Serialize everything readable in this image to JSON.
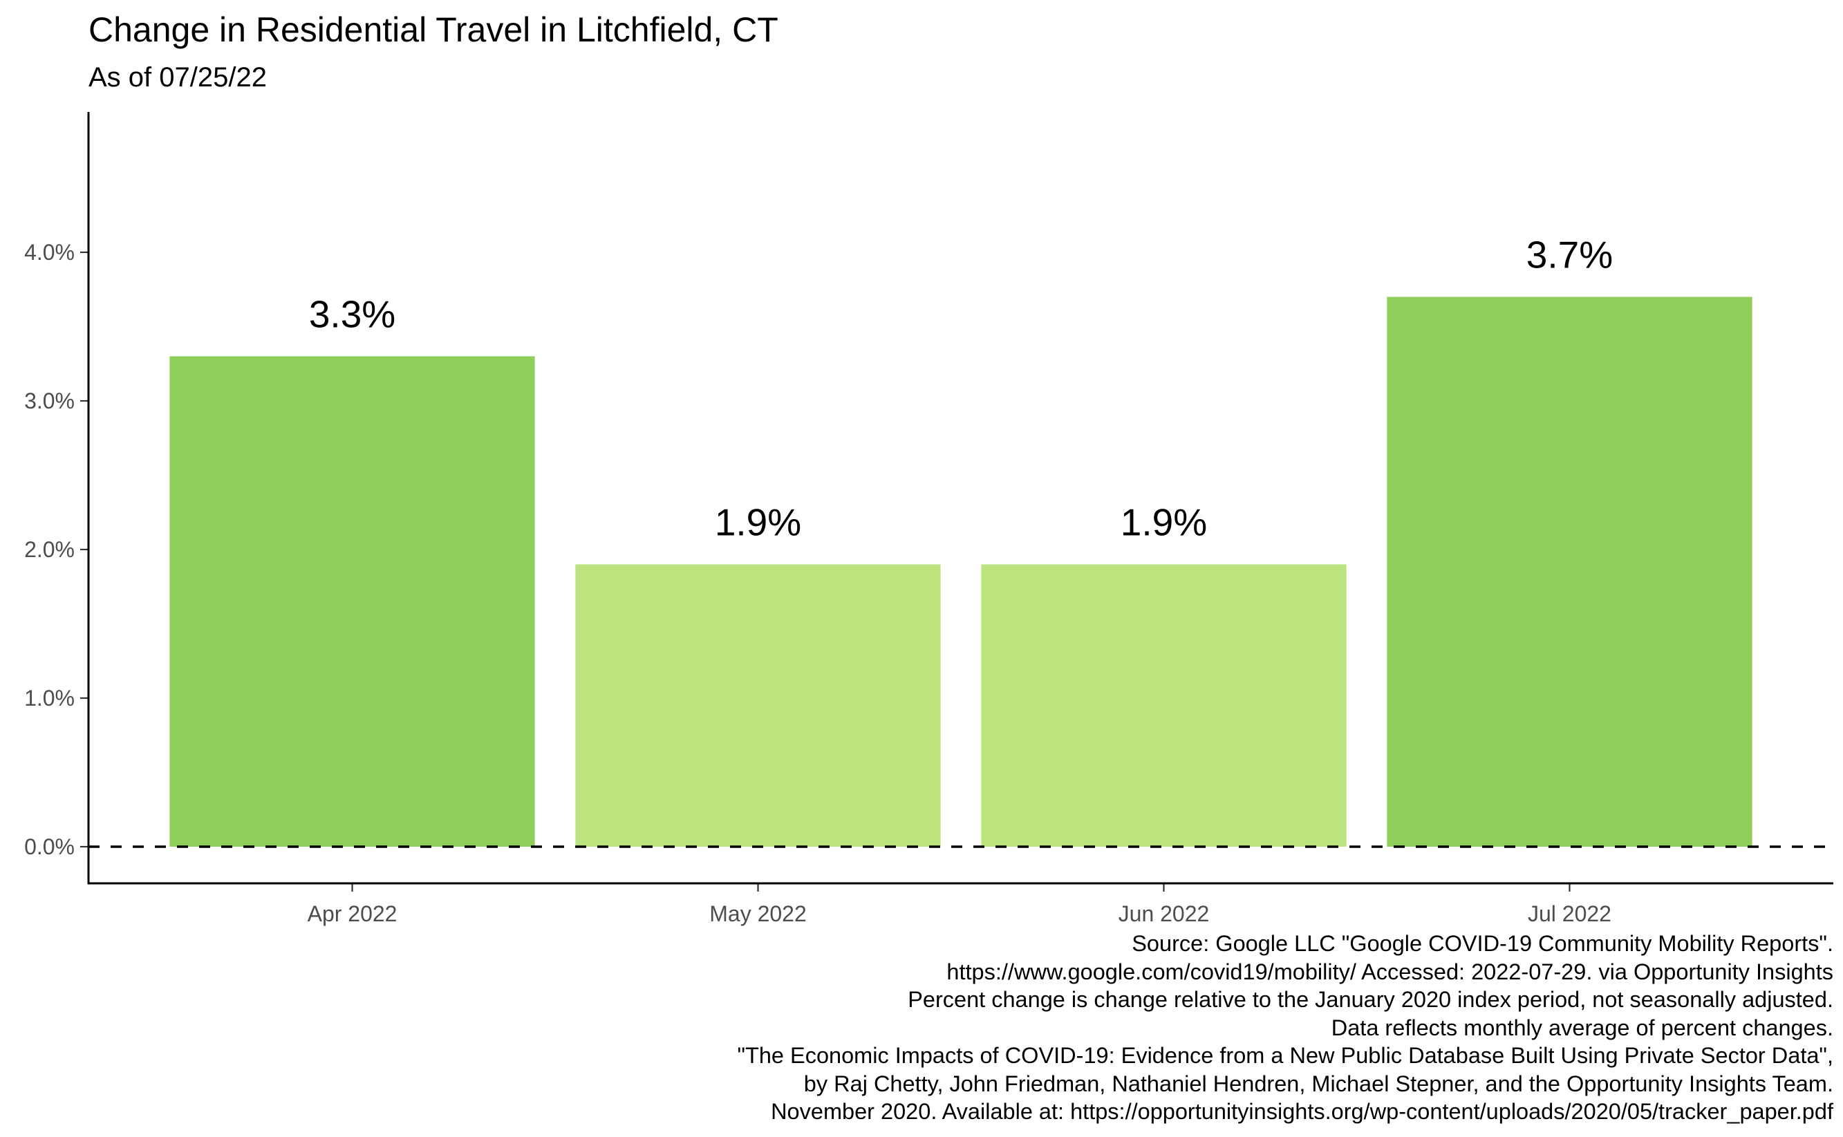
{
  "chart_data": {
    "type": "bar",
    "title": "Change in Residential Travel in Litchfield, CT",
    "subtitle": "As of 07/25/22",
    "xlabel": "",
    "ylabel": "",
    "categories": [
      "Apr 2022",
      "May 2022",
      "Jun 2022",
      "Jul 2022"
    ],
    "values": [
      3.3,
      1.9,
      1.9,
      3.7
    ],
    "data_labels": [
      "3.3%",
      "1.9%",
      "1.9%",
      "3.7%"
    ],
    "bar_colors": [
      "#8fce5a",
      "#bce47e",
      "#bce47e",
      "#8fce5a"
    ],
    "y_ticks": [
      0,
      1,
      2,
      3,
      4
    ],
    "y_tick_labels": [
      "0.0%",
      "1.0%",
      "2.0%",
      "3.0%",
      "4.0%"
    ],
    "ylim": [
      -0.23,
      4.95
    ],
    "reference_line": {
      "y": 0,
      "style": "dashed"
    },
    "grid": false,
    "legend": "none"
  },
  "caption_lines": [
    "Source: Google LLC \"Google COVID-19 Community Mobility Reports\".",
    "https://www.google.com/covid19/mobility/ Accessed: 2022-07-29. via Opportunity Insights",
    "Percent change is change relative to the January 2020 index period, not seasonally adjusted.",
    "Data reflects monthly average of percent changes.",
    "\"The Economic Impacts of COVID-19: Evidence from a New Public Database Built Using Private Sector Data\",",
    "by Raj Chetty, John Friedman, Nathaniel Hendren, Michael Stepner, and the Opportunity Insights Team.",
    "November 2020. Available at: https://opportunityinsights.org/wp-content/uploads/2020/05/tracker_paper.pdf"
  ]
}
